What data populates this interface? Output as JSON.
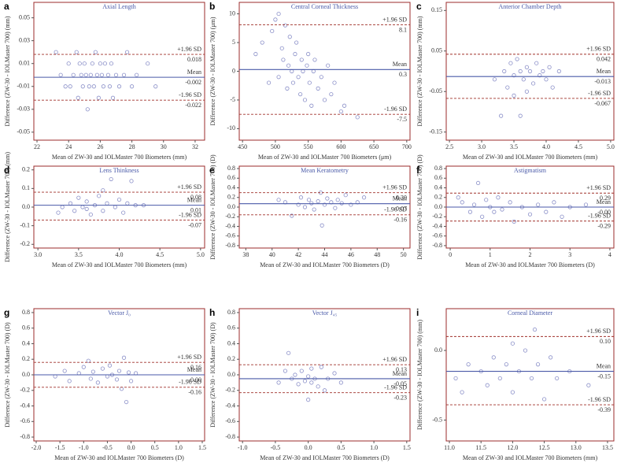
{
  "chart_data": [
    {
      "type": "scatter",
      "panel": "a",
      "title": "Axial Length",
      "xlabel": "Mean of ZW-30 and IOLMaster 700 Biometers (mm)",
      "ylabel": "Difference (ZW-30 - IOLMaster 700) (mm)",
      "xlim": [
        21.8,
        32.6
      ],
      "xticks": [
        22,
        24,
        26,
        28,
        30,
        32
      ],
      "ylim": [
        -0.057,
        0.0635
      ],
      "yticks": [
        -0.05,
        -0.03,
        -0.01,
        0.01,
        0.03,
        0.05
      ],
      "color": "#8a8fc8",
      "x": [
        23.2,
        23.5,
        23.8,
        24,
        24.1,
        24.3,
        24.5,
        24.6,
        24.7,
        24.8,
        24.9,
        25,
        25.1,
        25.2,
        25.3,
        25.4,
        25.5,
        25.6,
        25.7,
        25.8,
        25.9,
        26,
        26.1,
        26.2,
        26.3,
        26.5,
        26.6,
        26.7,
        26.8,
        27,
        27.2,
        27.5,
        27.7,
        28,
        28.3,
        29,
        29.5
      ],
      "y": [
        0.02,
        0,
        -0.01,
        0.01,
        -0.01,
        0,
        0.02,
        -0.02,
        0.01,
        0,
        -0.01,
        0.01,
        0,
        -0.03,
        -0.01,
        0,
        0.01,
        -0.01,
        0.02,
        0,
        -0.02,
        0.01,
        0,
        -0.01,
        0.01,
        0,
        -0.01,
        0.01,
        -0.02,
        0,
        -0.01,
        0,
        0.02,
        -0.01,
        0,
        0.01,
        -0.01
      ],
      "reference_lines": [
        {
          "name": "+1.96 SD",
          "value": 0.018,
          "color": "#a0302a",
          "style": "dashed"
        },
        {
          "name": "Mean",
          "value": -0.002,
          "color": "#4a5aa8",
          "style": "solid"
        },
        {
          "name": "-1.96 SD",
          "value": -0.022,
          "color": "#a0302a",
          "style": "dashed"
        }
      ]
    },
    {
      "type": "scatter",
      "panel": "b",
      "title": "Central Corneal Thickness",
      "xlabel": "Mean of ZW-30 and IOLMaster 700 Biometers (μm)",
      "ylabel": "Difference (ZW-30 - IOLMaster 700) (μm)",
      "xlim": [
        445,
        705
      ],
      "xticks": [
        450,
        500,
        550,
        600,
        650,
        700
      ],
      "ylim": [
        -12,
        12
      ],
      "yticks": [
        -10,
        -5,
        0,
        5,
        10
      ],
      "color": "#8a8fc8",
      "x": [
        470,
        480,
        490,
        495,
        500,
        505,
        505,
        510,
        512,
        515,
        518,
        520,
        522,
        525,
        527,
        530,
        532,
        535,
        538,
        540,
        542,
        545,
        548,
        550,
        552,
        555,
        558,
        560,
        565,
        570,
        575,
        580,
        585,
        590,
        600,
        605,
        625
      ],
      "y": [
        3,
        5,
        -2,
        7,
        9,
        10,
        -1,
        4,
        2,
        8,
        -3,
        1,
        6,
        0,
        -2,
        3,
        5,
        -1,
        -4,
        2,
        0,
        -5,
        1,
        3,
        -2,
        -6,
        0,
        2,
        -3,
        -1,
        -5,
        1,
        -4,
        -2,
        -7,
        -6,
        -8
      ],
      "reference_lines": [
        {
          "name": "+1.96 SD",
          "value": 8.1,
          "color": "#a0302a",
          "style": "dashed"
        },
        {
          "name": "Mean",
          "value": 0.3,
          "color": "#4a5aa8",
          "style": "solid"
        },
        {
          "name": "-1.96 SD",
          "value": -7.5,
          "color": "#a0302a",
          "style": "dashed"
        }
      ]
    },
    {
      "type": "scatter",
      "panel": "c",
      "title": "Anterior Chamber Depth",
      "xlabel": "Mean of ZW-30 and IOLMaster 700 Biometers (mm)",
      "ylabel": "Difference (ZW-30 - IOLMaster 700) (mm)",
      "xlim": [
        2.45,
        5.05
      ],
      "xticks": [
        2.5,
        {
          "value": 3,
          "label": "3.0"
        },
        3.5,
        {
          "value": 4,
          "label": "4.0"
        },
        4.5,
        {
          "value": 5,
          "label": "5.0"
        }
      ],
      "ylim": [
        -0.17,
        0.17
      ],
      "yticks": [
        -0.15,
        -0.05,
        0.05,
        0.15
      ],
      "color": "#8a8fc8",
      "x": [
        3.2,
        3.3,
        3.35,
        3.4,
        3.45,
        3.5,
        3.5,
        3.55,
        3.6,
        3.6,
        3.65,
        3.7,
        3.7,
        3.75,
        3.8,
        3.85,
        3.9,
        3.95,
        4.0,
        4.05,
        4.1,
        4.2
      ],
      "y": [
        -0.02,
        -0.11,
        0,
        -0.04,
        0.02,
        -0.01,
        -0.06,
        0.03,
        0,
        -0.11,
        -0.02,
        0.01,
        -0.05,
        0,
        -0.03,
        0.02,
        -0.01,
        0,
        -0.02,
        0.01,
        -0.04,
        0
      ],
      "reference_lines": [
        {
          "name": "+1.96 SD",
          "value": 0.042,
          "color": "#a0302a",
          "style": "dashed"
        },
        {
          "name": "Mean",
          "value": -0.013,
          "color": "#4a5aa8",
          "style": "solid"
        },
        {
          "name": "-1.96 SD",
          "value": -0.067,
          "color": "#a0302a",
          "style": "dashed"
        }
      ]
    },
    {
      "type": "scatter",
      "panel": "d",
      "title": "Lens Thinkness",
      "xlabel": "Mean of ZW-30 and IOLMaster 700 Biometers (mm)",
      "ylabel": "Difference (ZW-30 - IOLMaster 700) (mm)",
      "xlim": [
        2.95,
        5.05
      ],
      "xticks": [
        {
          "value": 3,
          "label": "3.0"
        },
        3.5,
        {
          "value": 4,
          "label": "4.0"
        },
        4.5,
        {
          "value": 5,
          "label": "5.0"
        }
      ],
      "ylim": [
        -0.22,
        0.22
      ],
      "yticks": [
        -0.2,
        -0.1,
        {
          "value": 0,
          "label": "0.0"
        },
        0.1,
        0.2
      ],
      "color": "#8a8fc8",
      "x": [
        3.25,
        3.3,
        3.4,
        3.45,
        3.5,
        3.55,
        3.6,
        3.6,
        3.65,
        3.7,
        3.75,
        3.8,
        3.8,
        3.85,
        3.9,
        3.95,
        4.0,
        4.05,
        4.1,
        4.15,
        4.2,
        4.3
      ],
      "y": [
        -0.03,
        0,
        0.02,
        -0.02,
        0.05,
        0,
        -0.01,
        0.03,
        -0.04,
        0.01,
        0.06,
        0.09,
        -0.02,
        0.02,
        0.15,
        0,
        0.04,
        -0.03,
        0.02,
        0.14,
        0.01,
        0.01
      ],
      "reference_lines": [
        {
          "name": "+1.96 SD",
          "value": 0.08,
          "color": "#a0302a",
          "style": "dashed"
        },
        {
          "name": "Mean",
          "value": 0.01,
          "color": "#4a5aa8",
          "style": "solid"
        },
        {
          "name": "-1.96 SD",
          "value": -0.07,
          "color": "#a0302a",
          "style": "dashed"
        }
      ]
    },
    {
      "type": "scatter",
      "panel": "e",
      "title": "Mean Keratometry",
      "xlabel": "Mean of ZW-30 and IOLMaster 700 Biometers (D)",
      "ylabel": "Difference (ZW-30 - IOLMaster 700) (D)",
      "xlim": [
        37.5,
        50.5
      ],
      "xticks": [
        38,
        40,
        42,
        44,
        46,
        48,
        50
      ],
      "ylim": [
        -0.85,
        0.85
      ],
      "yticks": [
        -0.8,
        -0.6,
        -0.4,
        -0.2,
        {
          "value": 0,
          "label": "0.0"
        },
        0.2,
        0.4,
        0.6,
        0.8
      ],
      "color": "#8a8fc8",
      "x": [
        40.5,
        41,
        41.5,
        42,
        42.2,
        42.5,
        42.8,
        43,
        43.2,
        43.5,
        43.7,
        43.8,
        44,
        44.2,
        44.5,
        44.8,
        45,
        45.3,
        45.6,
        46,
        46.5,
        47
      ],
      "y": [
        0.15,
        0.1,
        -0.18,
        0.05,
        0.2,
        0,
        0.15,
        0.08,
        -0.05,
        0.12,
        0.3,
        -0.38,
        0.05,
        0.18,
        0.1,
        -0.02,
        0.15,
        0.08,
        0.25,
        0.05,
        0.1,
        0.2
      ],
      "reference_lines": [
        {
          "name": "+1.96 SD",
          "value": 0.3,
          "label": "0.30",
          "color": "#a0302a",
          "style": "dashed"
        },
        {
          "name": "Mean",
          "value": 0.07,
          "color": "#4a5aa8",
          "style": "solid"
        },
        {
          "name": "-1.96 SD",
          "value": -0.16,
          "color": "#a0302a",
          "style": "dashed"
        }
      ]
    },
    {
      "type": "scatter",
      "panel": "f",
      "title": "Astigmatism",
      "xlabel": "Mean of ZW-30 and IOLMaster 700 Biometers (D)",
      "ylabel": "Difference (ZW-30 - IOLMaster 700) (D)",
      "xlim": [
        -0.1,
        4.1
      ],
      "xticks": [
        0,
        1,
        2,
        3,
        4
      ],
      "ylim": [
        -0.85,
        0.85
      ],
      "yticks": [
        -0.8,
        -0.6,
        -0.4,
        -0.2,
        {
          "value": 0,
          "label": "0.0"
        },
        0.2,
        0.4,
        0.6,
        0.8
      ],
      "color": "#8a8fc8",
      "x": [
        0.2,
        0.3,
        0.5,
        0.6,
        0.7,
        0.8,
        0.9,
        1,
        1.1,
        1.2,
        1.3,
        1.5,
        1.6,
        1.8,
        2,
        2.2,
        2.4,
        2.6,
        2.8,
        3,
        3.4
      ],
      "y": [
        0.2,
        0.1,
        -0.1,
        0.05,
        0.5,
        -0.2,
        0.15,
        0,
        -0.1,
        0.2,
        -0.05,
        0.1,
        -0.3,
        0,
        -0.15,
        0.05,
        -0.1,
        0.1,
        -0.2,
        0,
        0.05
      ],
      "reference_lines": [
        {
          "name": "+1.96 SD",
          "value": 0.29,
          "color": "#a0302a",
          "style": "dashed"
        },
        {
          "name": "Mean",
          "value": 0,
          "label": "-0.00",
          "color": "#4a5aa8",
          "style": "solid"
        },
        {
          "name": "-1.96 SD",
          "value": -0.29,
          "color": "#a0302a",
          "style": "dashed"
        }
      ]
    },
    {
      "type": "scatter",
      "panel": "g",
      "title": "Vector J₀",
      "xlabel": "Mean of ZW-30 and IOLMaster 700 Biometers (D)",
      "ylabel": "Difference (ZW-30 - IOLMaster 700) (D)",
      "xlim": [
        -2.05,
        1.55
      ],
      "xticks": [
        {
          "value": -2,
          "label": "-2.0"
        },
        -1.5,
        {
          "value": -1,
          "label": "-1.0"
        },
        -0.5,
        {
          "value": 0,
          "label": "0.0"
        },
        0.5,
        {
          "value": 1,
          "label": "1.0"
        },
        1.5
      ],
      "ylim": [
        -0.85,
        0.85
      ],
      "yticks": [
        -0.8,
        -0.6,
        -0.4,
        -0.2,
        {
          "value": 0,
          "label": "0.0"
        },
        0.2,
        0.4,
        0.6,
        0.8
      ],
      "color": "#8a8fc8",
      "x": [
        -1.6,
        -1.4,
        -1.3,
        -1.1,
        -1,
        -0.9,
        -0.85,
        -0.8,
        -0.7,
        -0.6,
        -0.5,
        -0.45,
        -0.4,
        -0.3,
        -0.25,
        -0.2,
        -0.15,
        -0.1,
        -0.05,
        0,
        0.1
      ],
      "y": [
        -0.02,
        0.05,
        -0.08,
        0.02,
        0.1,
        0.18,
        -0.05,
        0.04,
        -0.1,
        0.08,
        -0.02,
        0.12,
        0,
        -0.06,
        0.05,
        -0.18,
        0.22,
        -0.35,
        0.03,
        -0.08,
        0.02
      ],
      "reference_lines": [
        {
          "name": "+1.96 SD",
          "value": 0.16,
          "color": "#a0302a",
          "style": "dashed"
        },
        {
          "name": "Mean",
          "value": 0,
          "label": "-0.00",
          "color": "#4a5aa8",
          "style": "solid"
        },
        {
          "name": "-1.96 SD",
          "value": -0.16,
          "color": "#a0302a",
          "style": "dashed"
        }
      ]
    },
    {
      "type": "scatter",
      "panel": "h",
      "title": "Vector J₄₅",
      "xlabel": "Mean of ZW-30 and IOLMaster 700 Biometers (D)",
      "ylabel": "Difference (ZW-30 - IOLMaster 700) (D)",
      "xlim": [
        -1.05,
        1.55
      ],
      "xticks": [
        {
          "value": -1,
          "label": "-1.0"
        },
        -0.5,
        {
          "value": 0,
          "label": "0.0"
        },
        0.5,
        {
          "value": 1,
          "label": "1.0"
        },
        1.5
      ],
      "ylim": [
        -0.85,
        0.85
      ],
      "yticks": [
        -0.8,
        -0.6,
        -0.4,
        -0.2,
        {
          "value": 0,
          "label": "0.0"
        },
        0.2,
        0.4,
        0.6,
        0.8
      ],
      "color": "#8a8fc8",
      "x": [
        -0.45,
        -0.35,
        -0.3,
        -0.25,
        -0.2,
        -0.15,
        -0.1,
        -0.05,
        0,
        0,
        0.05,
        0.05,
        0.1,
        0.15,
        0.2,
        0.25,
        0.3,
        0.4,
        0.5
      ],
      "y": [
        -0.1,
        0.05,
        0.28,
        -0.05,
        0,
        -0.12,
        0.05,
        -0.08,
        -0.02,
        -0.32,
        -0.1,
        0.08,
        -0.05,
        -0.15,
        0.1,
        -0.2,
        -0.05,
        0.02,
        -0.1
      ],
      "reference_lines": [
        {
          "name": "+1.96 SD",
          "value": 0.13,
          "color": "#a0302a",
          "style": "dashed"
        },
        {
          "name": "Mean",
          "value": -0.05,
          "color": "#4a5aa8",
          "style": "solid"
        },
        {
          "name": "-1.96 SD",
          "value": -0.23,
          "color": "#a0302a",
          "style": "dashed"
        }
      ]
    },
    {
      "type": "scatter",
      "panel": "i",
      "title": "Corneal Diameter",
      "xlabel": "Mean of ZW-30 and IOLMaster 700 Biometers (mm)",
      "ylabel": "Difference (ZW-30 - IOLMaster 700) (mm)",
      "xlim": [
        10.95,
        13.6
      ],
      "xticks": [
        {
          "value": 11,
          "label": "11.0"
        },
        11.5,
        {
          "value": 12,
          "label": "12.0"
        },
        12.5,
        {
          "value": 13,
          "label": "13.0"
        },
        13.5
      ],
      "ylim": [
        -0.65,
        0.3
      ],
      "yticks": [
        -0.5,
        {
          "value": 0,
          "label": "0.0"
        }
      ],
      "color": "#8a8fc8",
      "x": [
        11.1,
        11.2,
        11.3,
        11.5,
        11.6,
        11.7,
        11.8,
        11.9,
        12,
        12,
        12.1,
        12.2,
        12.3,
        12.35,
        12.4,
        12.5,
        12.6,
        12.7,
        12.9,
        13.2
      ],
      "y": [
        -0.2,
        -0.3,
        -0.1,
        -0.15,
        -0.25,
        -0.05,
        -0.2,
        -0.1,
        0.05,
        -0.3,
        -0.15,
        0,
        -0.2,
        0.15,
        -0.1,
        -0.35,
        -0.05,
        -0.2,
        -0.15,
        -0.25
      ],
      "reference_lines": [
        {
          "name": "+1.96 SD",
          "value": 0.1,
          "label": "0.10",
          "color": "#a0302a",
          "style": "dashed"
        },
        {
          "name": "Mean",
          "value": -0.15,
          "color": "#4a5aa8",
          "style": "solid"
        },
        {
          "name": "-1.96 SD",
          "value": -0.39,
          "color": "#a0302a",
          "style": "dashed"
        }
      ]
    }
  ]
}
